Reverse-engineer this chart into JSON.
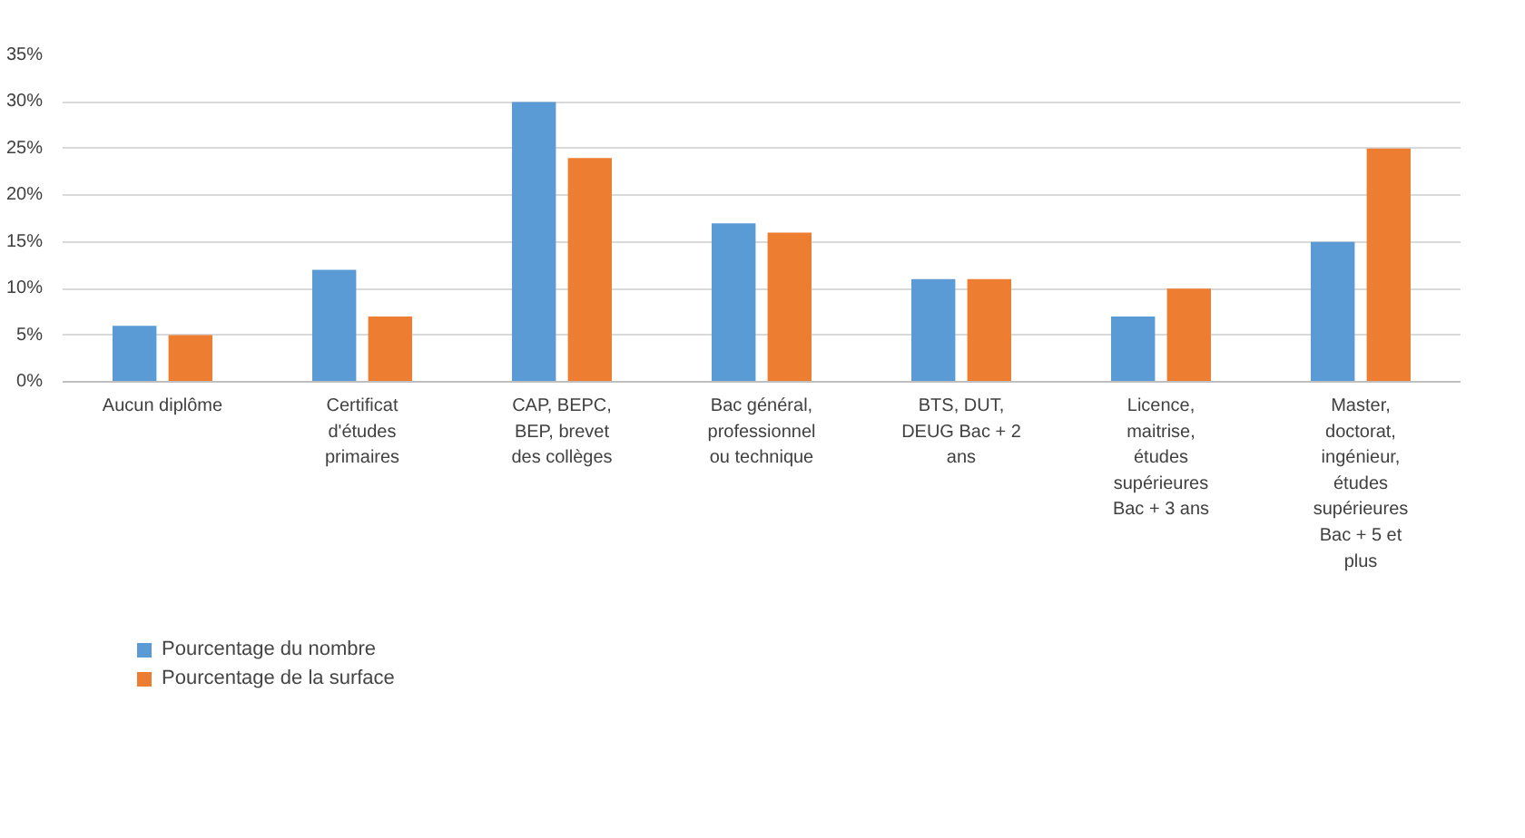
{
  "chart_data": {
    "type": "bar",
    "categories": [
      "Aucun diplôme",
      "Certificat d'études primaires",
      "CAP, BEPC, BEP, brevet des collèges",
      "Bac général, professionnel ou technique",
      "BTS, DUT, DEUG Bac + 2 ans",
      "Licence, maitrise, études supérieures Bac + 3 ans",
      "Master, doctorat, ingénieur, études supérieures Bac + 5 et plus"
    ],
    "series": [
      {
        "name": "Pourcentage du nombre",
        "color": "#5b9bd5",
        "values": [
          6,
          12,
          30,
          17,
          11,
          7,
          15
        ]
      },
      {
        "name": "Pourcentage de la surface",
        "color": "#ed7d31",
        "values": [
          5,
          7,
          24,
          16,
          11,
          10,
          25
        ]
      }
    ],
    "ylim": [
      0,
      35
    ],
    "yticks": [
      {
        "value": 0,
        "label": "0%"
      },
      {
        "value": 5,
        "label": "5%"
      },
      {
        "value": 10,
        "label": "10%"
      },
      {
        "value": 15,
        "label": "15%"
      },
      {
        "value": 20,
        "label": "20%"
      },
      {
        "value": 25,
        "label": "25%"
      },
      {
        "value": 30,
        "label": "30%"
      },
      {
        "value": 35,
        "label": "35%"
      }
    ],
    "grid": "y",
    "legend": "bottom left"
  }
}
